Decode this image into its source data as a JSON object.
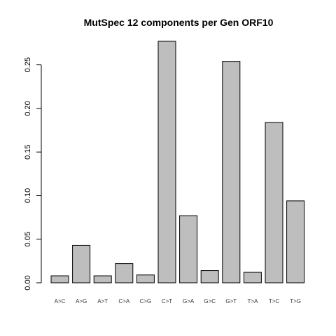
{
  "chart_data": {
    "type": "bar",
    "title": "MutSpec 12 components per Gen ORF10",
    "xlabel": "",
    "ylabel": "",
    "categories": [
      "A>C",
      "A>G",
      "A>T",
      "C>A",
      "C>G",
      "C>T",
      "G>A",
      "G>C",
      "G>T",
      "T>A",
      "T>C",
      "T>G"
    ],
    "values": [
      0.008,
      0.043,
      0.008,
      0.022,
      0.009,
      0.277,
      0.077,
      0.014,
      0.254,
      0.012,
      0.184,
      0.094
    ],
    "ylim": [
      0,
      0.277
    ],
    "yticks": [
      0.0,
      0.05,
      0.1,
      0.15,
      0.2,
      0.25
    ],
    "ytick_labels": [
      "0.00",
      "0.05",
      "0.10",
      "0.15",
      "0.20",
      "0.25"
    ],
    "grid": false,
    "legend": "none",
    "bar_color": "#bebebe",
    "bar_edge_color": "#000000"
  }
}
